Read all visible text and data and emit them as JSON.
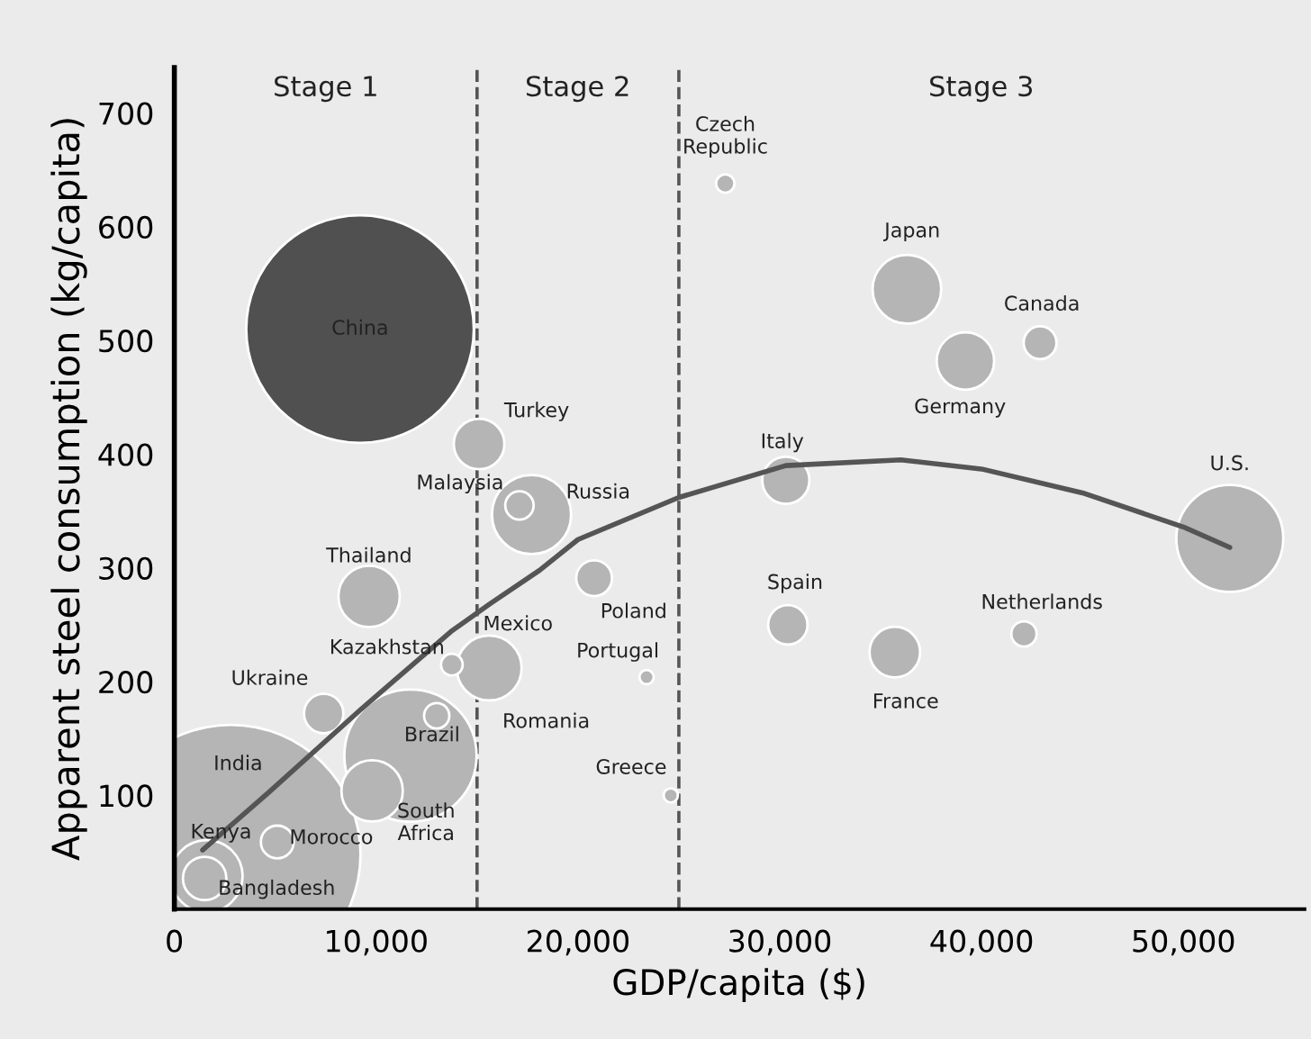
{
  "chart_data": {
    "type": "bubble",
    "xlabel": "GDP/capita ($)",
    "ylabel": "Apparent steel consumption (kg/capita)",
    "xlim": [
      0,
      56000
    ],
    "ylim": [
      0,
      740
    ],
    "xticks": [
      0,
      {
        "value": 10000,
        "label": "10,000"
      },
      {
        "value": 20000,
        "label": "20,000"
      },
      {
        "value": 30000,
        "label": "30,000"
      },
      {
        "value": 40000,
        "label": "40,000"
      },
      {
        "value": 50000,
        "label": "50,000"
      }
    ],
    "yticks": [
      100,
      200,
      300,
      400,
      500,
      600,
      700
    ],
    "series": [
      {
        "name": "India",
        "color": "#b5b5b5",
        "x": [
          2800
        ],
        "values": [
          48
        ],
        "sizes": [
          1
        ]
      },
      {
        "name": "China",
        "color": "#505050",
        "x": [
          9200
        ],
        "values": [
          510
        ],
        "sizes": [
          0.77
        ]
      },
      {
        "name": "Brazil",
        "color": "#b5b5b5",
        "x": [
          11700
        ],
        "values": [
          135
        ],
        "sizes": [
          0.26
        ]
      },
      {
        "name": "U.S.",
        "color": "#b5b5b5",
        "x": [
          52300
        ],
        "values": [
          326
        ],
        "sizes": [
          0.17
        ]
      },
      {
        "name": "Russia",
        "color": "#b5b5b5",
        "x": [
          17700
        ],
        "values": [
          347
        ],
        "sizes": [
          0.093
        ]
      },
      {
        "name": "Kenya",
        "color": "#b5b5b5",
        "x": [
          1600
        ],
        "values": [
          29
        ],
        "sizes": [
          0.077
        ]
      },
      {
        "name": "Japan",
        "color": "#b5b5b5",
        "x": [
          36300
        ],
        "values": [
          545
        ],
        "sizes": [
          0.07
        ]
      },
      {
        "name": "Mexico",
        "color": "#b5b5b5",
        "x": [
          15600
        ],
        "values": [
          212
        ],
        "sizes": [
          0.0625
        ]
      },
      {
        "name": "Thailand",
        "color": "#b5b5b5",
        "x": [
          9650
        ],
        "values": [
          275
        ],
        "sizes": [
          0.056
        ]
      },
      {
        "name": "South\nAfrica",
        "color": "#b5b5b5",
        "x": [
          9800
        ],
        "values": [
          104
        ],
        "sizes": [
          0.056
        ]
      },
      {
        "name": "Germany",
        "color": "#b5b5b5",
        "x": [
          39200
        ],
        "values": [
          482
        ],
        "sizes": [
          0.049
        ]
      },
      {
        "name": "Turkey",
        "color": "#b5b5b5",
        "x": [
          15100
        ],
        "values": [
          409
        ],
        "sizes": [
          0.038
        ]
      },
      {
        "name": "France",
        "color": "#b5b5b5",
        "x": [
          35700
        ],
        "values": [
          226
        ],
        "sizes": [
          0.038
        ]
      },
      {
        "name": "Italy",
        "color": "#b5b5b5",
        "x": [
          30300
        ],
        "values": [
          377
        ],
        "sizes": [
          0.033
        ]
      },
      {
        "name": "Ukraine",
        "color": "#b5b5b5",
        "x": [
          7400
        ],
        "values": [
          172
        ],
        "sizes": [
          0.023
        ]
      },
      {
        "name": "Spain",
        "color": "#b5b5b5",
        "x": [
          30400
        ],
        "values": [
          250
        ],
        "sizes": [
          0.023
        ]
      },
      {
        "name": "Poland",
        "color": "#b5b5b5",
        "x": [
          20800
        ],
        "values": [
          291
        ],
        "sizes": [
          0.019
        ]
      },
      {
        "name": "Bangladesh",
        "color": "#b5b5b5",
        "x": [
          1500
        ],
        "values": [
          27
        ],
        "sizes": [
          0.028
        ]
      },
      {
        "name": "Morocco",
        "color": "#b5b5b5",
        "x": [
          5100
        ],
        "values": [
          59
        ],
        "sizes": [
          0.016
        ]
      },
      {
        "name": "Canada",
        "color": "#b5b5b5",
        "x": [
          42900
        ],
        "values": [
          498
        ],
        "sizes": [
          0.016
        ]
      },
      {
        "name": "Malaysia",
        "color": "#b5b5b5",
        "x": [
          17100
        ],
        "values": [
          355
        ],
        "sizes": [
          0.012
        ]
      },
      {
        "name": "Netherlands",
        "color": "#b5b5b5",
        "x": [
          42100
        ],
        "values": [
          242
        ],
        "sizes": [
          0.0095
        ]
      },
      {
        "color": "#b5b5b5",
        "x": [
          13000
        ],
        "values": [
          170
        ],
        "sizes": [
          0.0095
        ]
      },
      {
        "name": "Kazakhstan",
        "color": "#b5b5b5",
        "x": [
          13750
        ],
        "values": [
          215
        ],
        "sizes": [
          0.007
        ]
      },
      {
        "name": "Czech\nRepublic",
        "color": "#b5b5b5",
        "x": [
          27300
        ],
        "values": [
          638
        ],
        "sizes": [
          0.005
        ]
      },
      {
        "name": "Portugal",
        "color": "#b5b5b5",
        "x": [
          23400
        ],
        "values": [
          204
        ],
        "sizes": [
          0.003
        ]
      },
      {
        "name": "Greece",
        "color": "#b5b5b5",
        "x": [
          24600
        ],
        "values": [
          100
        ],
        "sizes": [
          0.003
        ]
      },
      {
        "type": "line",
        "color": "#555555",
        "x": [
          1400,
          4700,
          9200,
          13700,
          15600,
          18100,
          20000,
          25000,
          30300,
          36000,
          40000,
          45000,
          50000,
          52300
        ],
        "values": [
          52,
          103,
          175,
          244,
          268,
          298,
          325,
          362,
          390,
          395,
          387,
          366,
          336,
          318
        ]
      }
    ],
    "ref_lines": [
      {
        "axis": "x",
        "value": 15000,
        "line_style": "dashed",
        "color": "#555555"
      },
      {
        "axis": "x",
        "value": 25000,
        "line_style": "dashed",
        "color": "#555555"
      }
    ],
    "annotations": [
      "Stage 1",
      "Stage 2",
      "Stage 3",
      "Romania"
    ]
  }
}
